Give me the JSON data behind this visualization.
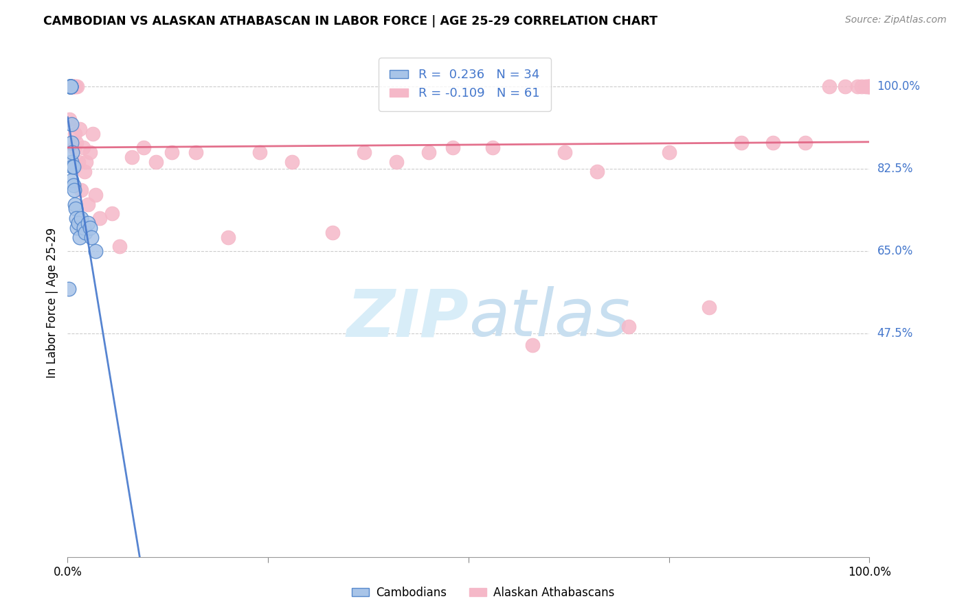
{
  "title": "CAMBODIAN VS ALASKAN ATHABASCAN IN LABOR FORCE | AGE 25-29 CORRELATION CHART",
  "source": "Source: ZipAtlas.com",
  "ylabel": "In Labor Force | Age 25-29",
  "y_tick_values": [
    1.0,
    0.825,
    0.65,
    0.475
  ],
  "y_tick_labels": [
    "100.0%",
    "82.5%",
    "65.0%",
    "47.5%"
  ],
  "R_cambodian": 0.236,
  "N_cambodian": 34,
  "R_athabascan": -0.109,
  "N_athabascan": 61,
  "cambodian_fill": "#a8c4e8",
  "cambodian_edge": "#5588cc",
  "athabascan_fill": "#f5b8c8",
  "athabascan_edge": "#f5b8c8",
  "cambodian_line_color": "#4477cc",
  "athabascan_line_color": "#e06080",
  "watermark_color": "#d8edf8",
  "grid_color": "#cccccc",
  "axis_label_color": "#4477cc",
  "background_color": "#ffffff",
  "xlim": [
    0.0,
    1.0
  ],
  "ylim": [
    0.0,
    1.08
  ],
  "cambodian_x": [
    0.001,
    0.002,
    0.003,
    0.003,
    0.003,
    0.003,
    0.003,
    0.004,
    0.004,
    0.004,
    0.004,
    0.004,
    0.005,
    0.005,
    0.005,
    0.005,
    0.006,
    0.006,
    0.007,
    0.007,
    0.008,
    0.009,
    0.01,
    0.011,
    0.012,
    0.013,
    0.015,
    0.017,
    0.02,
    0.022,
    0.025,
    0.028,
    0.03,
    0.035
  ],
  "cambodian_y": [
    0.57,
    1.0,
    1.0,
    1.0,
    1.0,
    1.0,
    1.0,
    1.0,
    1.0,
    1.0,
    1.0,
    1.0,
    0.92,
    0.88,
    0.84,
    0.8,
    0.86,
    0.83,
    0.79,
    0.83,
    0.78,
    0.75,
    0.74,
    0.72,
    0.7,
    0.71,
    0.68,
    0.72,
    0.7,
    0.69,
    0.71,
    0.7,
    0.68,
    0.65
  ],
  "athabascan_x": [
    0.002,
    0.003,
    0.004,
    0.005,
    0.005,
    0.005,
    0.006,
    0.006,
    0.007,
    0.007,
    0.008,
    0.008,
    0.009,
    0.01,
    0.011,
    0.012,
    0.013,
    0.015,
    0.017,
    0.019,
    0.021,
    0.023,
    0.025,
    0.028,
    0.031,
    0.035,
    0.04,
    0.055,
    0.065,
    0.08,
    0.095,
    0.11,
    0.13,
    0.16,
    0.2,
    0.24,
    0.28,
    0.33,
    0.37,
    0.41,
    0.45,
    0.48,
    0.53,
    0.58,
    0.62,
    0.66,
    0.7,
    0.75,
    0.8,
    0.84,
    0.88,
    0.92,
    0.95,
    0.97,
    0.985,
    0.99,
    0.995,
    0.998,
    1.0,
    1.0,
    1.0
  ],
  "athabascan_y": [
    0.93,
    1.0,
    1.0,
    1.0,
    1.0,
    1.0,
    1.0,
    1.0,
    1.0,
    1.0,
    0.87,
    1.0,
    0.9,
    1.0,
    0.88,
    1.0,
    0.84,
    0.91,
    0.78,
    0.87,
    0.82,
    0.84,
    0.75,
    0.86,
    0.9,
    0.77,
    0.72,
    0.73,
    0.66,
    0.85,
    0.87,
    0.84,
    0.86,
    0.86,
    0.68,
    0.86,
    0.84,
    0.69,
    0.86,
    0.84,
    0.86,
    0.87,
    0.87,
    0.45,
    0.86,
    0.82,
    0.49,
    0.86,
    0.53,
    0.88,
    0.88,
    0.88,
    1.0,
    1.0,
    1.0,
    1.0,
    1.0,
    1.0,
    1.0,
    1.0,
    1.0
  ]
}
